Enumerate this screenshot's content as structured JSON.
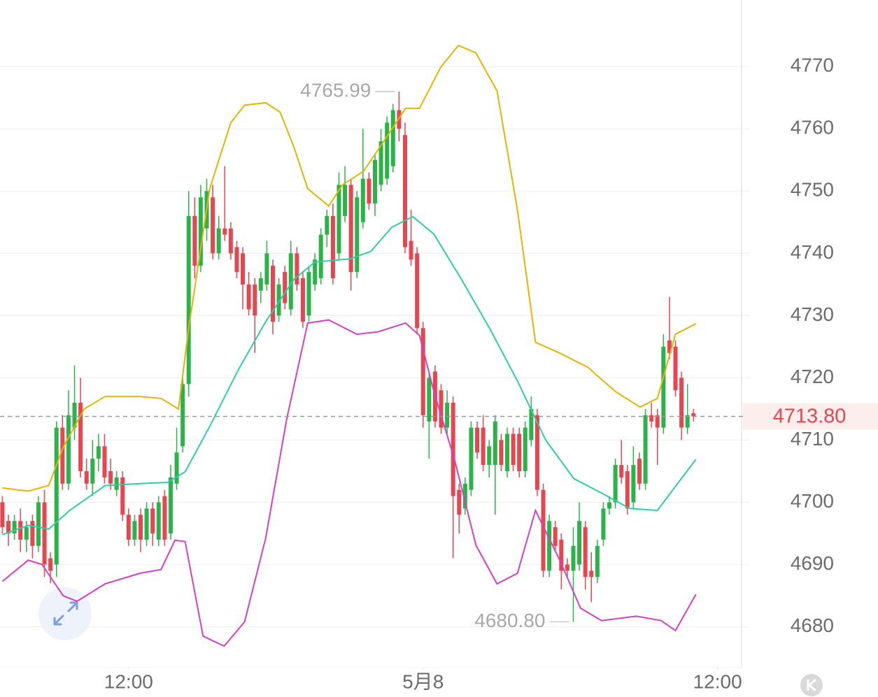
{
  "chart_data": {
    "type": "candlestick",
    "up_color": "#2bb34a",
    "down_color": "#e5464f",
    "ylim": [
      4674,
      4780.7
    ],
    "yticks": [
      4680,
      4690,
      4700,
      4710,
      4720,
      4730,
      4740,
      4750,
      4760,
      4770
    ],
    "xlim": [
      -0.4,
      123
    ],
    "xticks": [
      {
        "value": 21,
        "label": "12:00"
      },
      {
        "value": 70,
        "label": "5月8"
      },
      {
        "value": 119,
        "label": "12:00"
      }
    ],
    "grid": true,
    "high_label": 4765.99,
    "low_label": {
      "value": 4680.8,
      "label": "4680.80"
    },
    "last_price": {
      "value": 4713.8,
      "label": "4713.80",
      "color": "#e5464f"
    },
    "candles": [
      [
        4700,
        4701,
        4695,
        4696
      ],
      [
        4697,
        4698,
        4693,
        4695
      ],
      [
        4695,
        4698,
        4694,
        4697
      ],
      [
        4697,
        4699,
        4692,
        4694
      ],
      [
        4694,
        4697,
        4692,
        4696
      ],
      [
        4697,
        4698,
        4691,
        4693
      ],
      [
        4693,
        4701,
        4692,
        4700
      ],
      [
        4700,
        4702,
        4688,
        4690
      ],
      [
        4691,
        4692,
        4687,
        4689
      ],
      [
        4690,
        4713,
        4688,
        4712
      ],
      [
        4712,
        4714,
        4702,
        4703
      ],
      [
        4703,
        4718,
        4702,
        4714
      ],
      [
        4712,
        4722,
        4710,
        4716
      ],
      [
        4716,
        4720,
        4704,
        4705
      ],
      [
        4705,
        4707,
        4702,
        4703
      ],
      [
        4703,
        4710,
        4701,
        4707
      ],
      [
        4707,
        4711,
        4705,
        4709
      ],
      [
        4709,
        4711,
        4703,
        4704
      ],
      [
        4705,
        4707,
        4702,
        4703
      ],
      [
        4702,
        4705,
        4701,
        4704
      ],
      [
        4704,
        4705,
        4697,
        4698
      ],
      [
        4698,
        4699,
        4693,
        4694
      ],
      [
        4694,
        4698,
        4693,
        4697
      ],
      [
        4698,
        4699,
        4692,
        4694
      ],
      [
        4694,
        4700,
        4693,
        4699
      ],
      [
        4699,
        4700,
        4693,
        4695
      ],
      [
        4694,
        4701,
        4693,
        4700
      ],
      [
        4701,
        4702,
        4693,
        4694
      ],
      [
        4695,
        4706,
        4694,
        4704
      ],
      [
        4703,
        4712,
        4702,
        4708
      ],
      [
        4709,
        4720,
        4708,
        4719
      ],
      [
        4719,
        4750,
        4717,
        4746
      ],
      [
        4746,
        4749,
        4736,
        4738
      ],
      [
        4738,
        4751,
        4737,
        4749
      ],
      [
        4744,
        4752,
        4742,
        4750
      ],
      [
        4749,
        4751,
        4739,
        4740
      ],
      [
        4740,
        4746,
        4739,
        4744
      ],
      [
        4744,
        4754,
        4742,
        4743
      ],
      [
        4744,
        4745,
        4739,
        4740
      ],
      [
        4741,
        4742,
        4736,
        4737
      ],
      [
        4740,
        4741,
        4731,
        4735
      ],
      [
        4735,
        4737,
        4730,
        4731
      ],
      [
        4735,
        4736,
        4724,
        4730
      ],
      [
        4734,
        4737,
        4732,
        4736
      ],
      [
        4735,
        4742,
        4734,
        4740
      ],
      [
        4738,
        4739,
        4727,
        4729
      ],
      [
        4730,
        4736,
        4729,
        4735
      ],
      [
        4737,
        4738,
        4731,
        4732
      ],
      [
        4731,
        4742,
        4730,
        4740
      ],
      [
        4740,
        4741,
        4734,
        4735
      ],
      [
        4736,
        4737,
        4728,
        4729
      ],
      [
        4730,
        4738,
        4729,
        4737
      ],
      [
        4735,
        4740,
        4734,
        4739
      ],
      [
        4736,
        4744,
        4735,
        4743
      ],
      [
        4743,
        4747,
        4741,
        4746
      ],
      [
        4746,
        4748,
        4735,
        4736
      ],
      [
        4740,
        4753,
        4739,
        4751
      ],
      [
        4746,
        4754,
        4745,
        4751
      ],
      [
        4751,
        4752,
        4734,
        4737
      ],
      [
        4737,
        4750,
        4736,
        4749
      ],
      [
        4745,
        4760,
        4744,
        4752
      ],
      [
        4752,
        4753,
        4747,
        4748
      ],
      [
        4748,
        4756,
        4746,
        4755
      ],
      [
        4751,
        4760,
        4750,
        4758
      ],
      [
        4752,
        4762,
        4751,
        4761
      ],
      [
        4754,
        4764,
        4753,
        4763
      ],
      [
        4763,
        4765.99,
        4758,
        4760
      ],
      [
        4759,
        4761,
        4740,
        4741
      ],
      [
        4742,
        4747,
        4738,
        4739
      ],
      [
        4740,
        4741,
        4727,
        4728
      ],
      [
        4728,
        4729,
        4712,
        4714
      ],
      [
        4713,
        4721,
        4707,
        4720
      ],
      [
        4721,
        4722,
        4712,
        4713
      ],
      [
        4718,
        4719,
        4711,
        4712
      ],
      [
        4712,
        4718,
        4711,
        4716
      ],
      [
        4716,
        4717,
        4691,
        4701
      ],
      [
        4702,
        4703,
        4695,
        4698
      ],
      [
        4699,
        4704,
        4698,
        4703
      ],
      [
        4702,
        4713,
        4701,
        4712
      ],
      [
        4712,
        4713,
        4707,
        4708
      ],
      [
        4712,
        4714,
        4705,
        4706
      ],
      [
        4706,
        4710,
        4704,
        4709
      ],
      [
        4706,
        4714,
        4698,
        4713
      ],
      [
        4710,
        4711,
        4705,
        4706
      ],
      [
        4705,
        4712,
        4704,
        4711
      ],
      [
        4711,
        4712,
        4705,
        4706
      ],
      [
        4711,
        4712,
        4704,
        4705
      ],
      [
        4705,
        4713,
        4704,
        4712
      ],
      [
        4710,
        4717,
        4709,
        4715
      ],
      [
        4714,
        4715,
        4701,
        4702
      ],
      [
        4702,
        4703,
        4688,
        4689
      ],
      [
        4689,
        4698,
        4688,
        4697
      ],
      [
        4696,
        4697,
        4692,
        4693
      ],
      [
        4694,
        4695,
        4686,
        4689
      ],
      [
        4690,
        4691,
        4688,
        4689
      ],
      [
        4689,
        4696,
        4680.8,
        4693
      ],
      [
        4690,
        4700,
        4689,
        4697
      ],
      [
        4696,
        4697,
        4686,
        4688
      ],
      [
        4689,
        4692,
        4684,
        4688
      ],
      [
        4688,
        4694,
        4687,
        4693
      ],
      [
        4694,
        4700,
        4693,
        4699
      ],
      [
        4699,
        4701,
        4698,
        4700
      ],
      [
        4700,
        4707,
        4699,
        4706
      ],
      [
        4706,
        4710,
        4703,
        4704
      ],
      [
        4705,
        4706,
        4698,
        4699
      ],
      [
        4700,
        4709,
        4699,
        4706
      ],
      [
        4707,
        4708,
        4702,
        4703
      ],
      [
        4703,
        4715,
        4702,
        4714
      ],
      [
        4714,
        4716,
        4712,
        4713
      ],
      [
        4714,
        4715,
        4706,
        4712
      ],
      [
        4712,
        4727,
        4711,
        4725
      ],
      [
        4726,
        4733,
        4723,
        4724
      ],
      [
        4725,
        4726,
        4717,
        4718
      ],
      [
        4720,
        4721,
        4710,
        4712
      ],
      [
        4712,
        4719,
        4711,
        4714
      ],
      [
        4714.3,
        4715,
        4713,
        4713.8
      ]
    ],
    "bands": [
      {
        "color": "#e6b400",
        "x": [
          0,
          4.3,
          7.7,
          10.1,
          13.6,
          17.1,
          22.9,
          26.4,
          29.3,
          31,
          34.5,
          38,
          40.3,
          43.8,
          46.2,
          48.5,
          50.8,
          54.3,
          56.6,
          60.1,
          63.6,
          67.1,
          69.4,
          73,
          75.9,
          78.8,
          82.3,
          85.7,
          88.7,
          92.7,
          97.4,
          102,
          106.1,
          109,
          112,
          115.4
        ],
        "values": [
          4702.3,
          4701.8,
          4702.7,
          4708.8,
          4715,
          4717,
          4717,
          4716.7,
          4715,
          4728,
          4750.4,
          4761,
          4763.8,
          4764.2,
          4762.7,
          4757.1,
          4750.4,
          4747.6,
          4751,
          4753.2,
          4758.2,
          4763.3,
          4763.3,
          4770,
          4773.4,
          4772.2,
          4766.1,
          4747,
          4725.7,
          4724,
          4721.7,
          4717.8,
          4715.3,
          4716.7,
          4727,
          4728.7
        ]
      },
      {
        "color": "#2ecda5",
        "x": [
          0,
          4.3,
          7.7,
          11.2,
          17.1,
          22.9,
          27.5,
          30.4,
          34.5,
          39.2,
          43.8,
          48.5,
          52,
          57.8,
          61.3,
          64.8,
          68.3,
          71.8,
          76.4,
          81.1,
          85.7,
          90.4,
          95.1,
          99.7,
          104.4,
          109,
          112.5,
          115.4
        ],
        "values": [
          4694.8,
          4696.3,
          4695.7,
          4698.7,
          4702.7,
          4703,
          4703.2,
          4704.9,
          4712.2,
          4721.2,
          4729,
          4735.8,
          4738.6,
          4739.1,
          4740.3,
          4744.2,
          4745.9,
          4743.1,
          4735.8,
          4727.9,
          4719.5,
          4710,
          4703.8,
          4701.5,
          4699,
          4698.7,
          4703.2,
          4706.9
        ]
      },
      {
        "color": "#d53fc2",
        "x": [
          0,
          4.3,
          6.6,
          10.1,
          12.4,
          17.1,
          22.9,
          26.4,
          28.7,
          30.4,
          33.4,
          36.9,
          40.3,
          43.8,
          47.3,
          50.8,
          54.3,
          59,
          62.5,
          67.1,
          69.4,
          71.8,
          75.3,
          78.8,
          82.3,
          85.7,
          88.7,
          92.7,
          96.2,
          99.7,
          105.5,
          109.6,
          112,
          115.4
        ],
        "values": [
          4687.3,
          4690.7,
          4690,
          4685,
          4684.1,
          4686.9,
          4688.6,
          4689.2,
          4693.9,
          4693.7,
          4678.5,
          4676.9,
          4680.8,
          4694.2,
          4713.3,
          4728.8,
          4729.3,
          4727,
          4727.4,
          4728.8,
          4726.8,
          4717.8,
          4706.6,
          4693.1,
          4686.9,
          4688.6,
          4698.7,
          4690.8,
          4683,
          4681,
          4681.7,
          4681,
          4679.4,
          4685.2
        ]
      }
    ]
  }
}
